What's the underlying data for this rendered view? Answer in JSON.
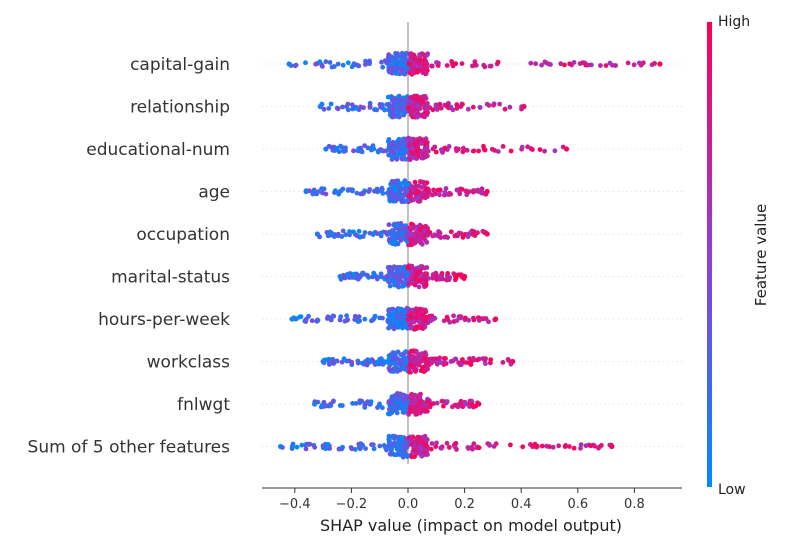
{
  "chart_data": {
    "type": "scatter",
    "subtype": "shap-beeswarm",
    "title": "",
    "xlabel": "SHAP value (impact on model output)",
    "ylabel": "",
    "xlim": [
      -0.52,
      0.96
    ],
    "xticks": [
      -0.4,
      -0.2,
      0.0,
      0.2,
      0.4,
      0.6,
      0.8
    ],
    "xtick_labels": [
      "−0.4",
      "−0.2",
      "0.0",
      "0.2",
      "0.4",
      "0.6",
      "0.8"
    ],
    "grid": false,
    "colorbar": {
      "label": "Feature value",
      "high_label": "High",
      "low_label": "Low",
      "low_color": "#008bfb",
      "high_color": "#ff0052"
    },
    "features": [
      {
        "name": "capital-gain",
        "min": -0.42,
        "max": 0.89
      },
      {
        "name": "relationship",
        "min": -0.31,
        "max": 0.41
      },
      {
        "name": "educational-num",
        "min": -0.29,
        "max": 0.56
      },
      {
        "name": "age",
        "min": -0.36,
        "max": 0.28
      },
      {
        "name": "occupation",
        "min": -0.32,
        "max": 0.28
      },
      {
        "name": "marital-status",
        "min": -0.24,
        "max": 0.2
      },
      {
        "name": "hours-per-week",
        "min": -0.41,
        "max": 0.31
      },
      {
        "name": "workclass",
        "min": -0.3,
        "max": 0.37
      },
      {
        "name": "fnlwgt",
        "min": -0.33,
        "max": 0.25
      },
      {
        "name": "Sum of 5 other features",
        "min": -0.45,
        "max": 0.72
      }
    ]
  }
}
